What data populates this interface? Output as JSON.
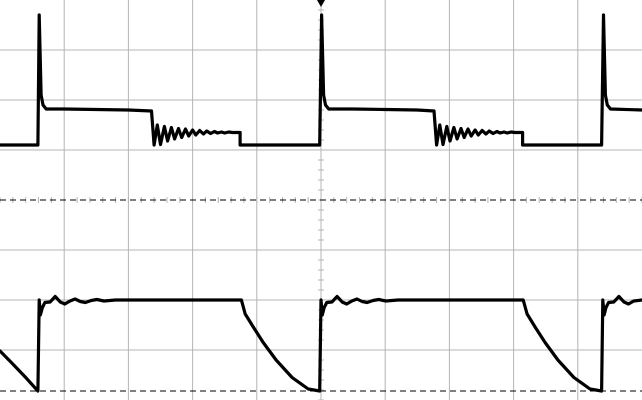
{
  "chart_data": {
    "type": "line",
    "title": "",
    "xlabel": "",
    "ylabel": "",
    "grid": true,
    "grid_divisions": {
      "x": 10,
      "y": 8
    },
    "xlim": [
      0,
      10
    ],
    "ylim": [
      0,
      8
    ],
    "colors": {
      "trace": "#000000",
      "grid": "#b4b4b4",
      "background": "#ffffff"
    },
    "series": [
      {
        "role": "upper-trace",
        "points": [
          [
            0.0,
            5.1
          ],
          [
            0.56,
            5.1
          ],
          [
            0.59,
            5.1
          ],
          [
            0.61,
            7.7
          ],
          [
            0.64,
            6.1
          ],
          [
            0.67,
            5.9
          ],
          [
            0.72,
            5.82
          ],
          [
            1.0,
            5.82
          ],
          [
            1.5,
            5.81
          ],
          [
            2.0,
            5.8
          ],
          [
            2.36,
            5.78
          ],
          [
            2.4,
            5.1
          ],
          [
            2.45,
            5.5
          ],
          [
            2.5,
            5.11
          ],
          [
            2.56,
            5.47
          ],
          [
            2.61,
            5.18
          ],
          [
            2.67,
            5.45
          ],
          [
            2.72,
            5.22
          ],
          [
            2.78,
            5.43
          ],
          [
            2.83,
            5.25
          ],
          [
            2.89,
            5.42
          ],
          [
            2.94,
            5.28
          ],
          [
            3.0,
            5.4
          ],
          [
            3.05,
            5.3
          ],
          [
            3.11,
            5.39
          ],
          [
            3.17,
            5.32
          ],
          [
            3.22,
            5.38
          ],
          [
            3.28,
            5.33
          ],
          [
            3.34,
            5.37
          ],
          [
            3.39,
            5.34
          ],
          [
            3.45,
            5.36
          ],
          [
            3.5,
            5.34
          ],
          [
            3.56,
            5.36
          ],
          [
            3.62,
            5.35
          ],
          [
            3.74,
            5.35
          ],
          [
            3.74,
            5.1
          ],
          [
            4.36,
            5.1
          ],
          [
            4.98,
            5.1
          ],
          [
            5.01,
            7.7
          ],
          [
            5.04,
            6.1
          ],
          [
            5.07,
            5.9
          ],
          [
            5.12,
            5.82
          ],
          [
            5.5,
            5.82
          ],
          [
            6.0,
            5.81
          ],
          [
            6.5,
            5.8
          ],
          [
            6.76,
            5.78
          ],
          [
            6.8,
            5.1
          ],
          [
            6.85,
            5.5
          ],
          [
            6.9,
            5.11
          ],
          [
            6.96,
            5.47
          ],
          [
            7.01,
            5.18
          ],
          [
            7.07,
            5.45
          ],
          [
            7.12,
            5.22
          ],
          [
            7.18,
            5.43
          ],
          [
            7.23,
            5.25
          ],
          [
            7.29,
            5.42
          ],
          [
            7.34,
            5.28
          ],
          [
            7.4,
            5.4
          ],
          [
            7.45,
            5.3
          ],
          [
            7.51,
            5.39
          ],
          [
            7.57,
            5.32
          ],
          [
            7.62,
            5.38
          ],
          [
            7.68,
            5.33
          ],
          [
            7.74,
            5.37
          ],
          [
            7.79,
            5.34
          ],
          [
            7.85,
            5.36
          ],
          [
            7.9,
            5.34
          ],
          [
            7.96,
            5.36
          ],
          [
            8.02,
            5.35
          ],
          [
            8.14,
            5.35
          ],
          [
            8.14,
            5.1
          ],
          [
            8.76,
            5.1
          ],
          [
            9.37,
            5.1
          ],
          [
            9.4,
            7.7
          ],
          [
            9.43,
            6.1
          ],
          [
            9.46,
            5.9
          ],
          [
            9.51,
            5.82
          ],
          [
            10.0,
            5.8
          ]
        ]
      },
      {
        "role": "lower-trace",
        "points": [
          [
            0.0,
            0.98
          ],
          [
            0.2,
            0.72
          ],
          [
            0.4,
            0.45
          ],
          [
            0.59,
            0.18
          ],
          [
            0.61,
            2.0
          ],
          [
            0.63,
            1.7
          ],
          [
            0.66,
            1.85
          ],
          [
            0.7,
            1.95
          ],
          [
            0.78,
            1.96
          ],
          [
            0.86,
            2.07
          ],
          [
            0.94,
            1.96
          ],
          [
            1.01,
            1.92
          ],
          [
            1.09,
            1.98
          ],
          [
            1.17,
            2.02
          ],
          [
            1.25,
            1.97
          ],
          [
            1.33,
            1.95
          ],
          [
            1.42,
            1.99
          ],
          [
            1.51,
            2.01
          ],
          [
            1.62,
            1.98
          ],
          [
            1.8,
            2.0
          ],
          [
            2.2,
            2.0
          ],
          [
            2.8,
            2.0
          ],
          [
            3.4,
            2.0
          ],
          [
            3.76,
            2.0
          ],
          [
            3.82,
            1.72
          ],
          [
            3.95,
            1.45
          ],
          [
            4.1,
            1.15
          ],
          [
            4.3,
            0.8
          ],
          [
            4.55,
            0.45
          ],
          [
            4.8,
            0.22
          ],
          [
            4.98,
            0.18
          ],
          [
            5.0,
            2.0
          ],
          [
            5.02,
            1.7
          ],
          [
            5.05,
            1.85
          ],
          [
            5.09,
            1.95
          ],
          [
            5.17,
            1.96
          ],
          [
            5.25,
            2.07
          ],
          [
            5.33,
            1.96
          ],
          [
            5.4,
            1.92
          ],
          [
            5.48,
            1.98
          ],
          [
            5.56,
            2.02
          ],
          [
            5.64,
            1.97
          ],
          [
            5.72,
            1.95
          ],
          [
            5.81,
            1.99
          ],
          [
            5.9,
            2.01
          ],
          [
            6.01,
            1.98
          ],
          [
            6.2,
            2.0
          ],
          [
            6.8,
            2.0
          ],
          [
            7.4,
            2.0
          ],
          [
            8.15,
            2.0
          ],
          [
            8.21,
            1.72
          ],
          [
            8.34,
            1.45
          ],
          [
            8.49,
            1.15
          ],
          [
            8.69,
            0.8
          ],
          [
            8.94,
            0.45
          ],
          [
            9.19,
            0.22
          ],
          [
            9.37,
            0.18
          ],
          [
            9.39,
            2.0
          ],
          [
            9.41,
            1.7
          ],
          [
            9.44,
            1.85
          ],
          [
            9.48,
            1.95
          ],
          [
            9.56,
            1.96
          ],
          [
            9.64,
            2.07
          ],
          [
            9.72,
            1.96
          ],
          [
            9.79,
            1.92
          ],
          [
            9.87,
            1.98
          ],
          [
            10.0,
            2.0
          ]
        ]
      }
    ],
    "reference_lines": [
      {
        "axis": "y",
        "value": 4.0,
        "style": "dashed"
      },
      {
        "axis": "y",
        "value": 0.18,
        "style": "dashed"
      }
    ],
    "markers": [
      {
        "axis": "x",
        "value": 5.0,
        "shape": "triangle-down",
        "edge": "top"
      }
    ]
  }
}
